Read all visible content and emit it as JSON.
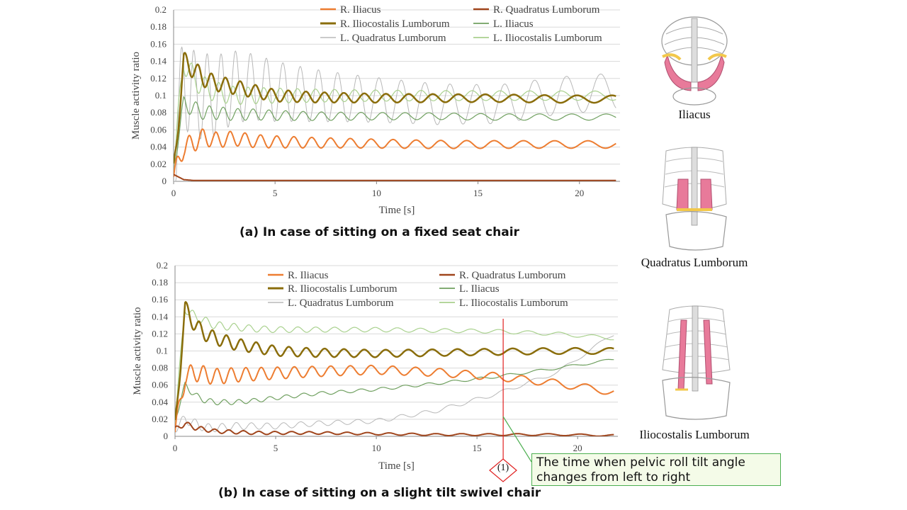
{
  "charts": {
    "top": {
      "caption": "(a) In case of sitting on a fixed seat chair",
      "xlabel": "Time  [s]",
      "ylabel": "Muscle activity ratio"
    },
    "bottom": {
      "caption": "(b) In case of sitting on a slight tilt swivel chair",
      "xlabel": "Time  [s]",
      "ylabel": "Muscle activity ratio"
    }
  },
  "annotation": {
    "marker": "(1)",
    "text_line1": "The time when pelvic roll tilt angle",
    "text_line2": "changes from left to right",
    "color_marker": "#e02020",
    "color_box": "#4caf50"
  },
  "anatomy": {
    "iliacus": "Iliacus",
    "quadratus": "Quadratus Lumborum",
    "iliocostalis": "Iliocostalis Lumborum",
    "muscle_color": "#e87a9a",
    "tendon_color": "#f2c84b"
  },
  "chart_data": [
    {
      "type": "line",
      "x": [
        0,
        0.5,
        1,
        1.5,
        2,
        3,
        4,
        5,
        7,
        10,
        13,
        16,
        19,
        21.8
      ],
      "xlim": [
        0,
        22
      ],
      "ylim": [
        0,
        0.2
      ],
      "xticks": [
        0,
        5,
        10,
        15,
        20
      ],
      "yticks": [
        0,
        0.02,
        0.04,
        0.06,
        0.08,
        0.1,
        0.12,
        0.14,
        0.16,
        0.18,
        0.2
      ],
      "ylabel": "Muscle activity ratio",
      "xlabel": "Time  [s]",
      "legend_placement": "top-right",
      "grid": "horizontal",
      "series": [
        {
          "name": "R. Iliacus",
          "color": "#ed7d31",
          "width": 2,
          "values": [
            0.005,
            0.04,
            0.045,
            0.052,
            0.048,
            0.05,
            0.047,
            0.046,
            0.045,
            0.044,
            0.043,
            0.043,
            0.043,
            0.043
          ],
          "osc": 0.012
        },
        {
          "name": "R. Quadratus Lumborum",
          "color": "#a0451c",
          "width": 2,
          "values": [
            0.008,
            0.002,
            0.001,
            0.001,
            0.001,
            0.001,
            0.001,
            0.001,
            0.001,
            0.001,
            0.001,
            0.001,
            0.001,
            0.001
          ],
          "osc": 0
        },
        {
          "name": "R. Iliocostalis Lumborum",
          "color": "#8a6d0b",
          "width": 2.5,
          "values": [
            0.01,
            0.14,
            0.13,
            0.12,
            0.115,
            0.11,
            0.105,
            0.1,
            0.098,
            0.097,
            0.097,
            0.097,
            0.096,
            0.096
          ],
          "osc": 0.012
        },
        {
          "name": "L. Iliacus",
          "color": "#70a060",
          "width": 1.2,
          "values": [
            0.02,
            0.09,
            0.085,
            0.08,
            0.08,
            0.078,
            0.078,
            0.077,
            0.076,
            0.076,
            0.076,
            0.075,
            0.075,
            0.075
          ],
          "osc": 0.01
        },
        {
          "name": "L. Quadratus Lumborum",
          "color": "#b8b8b8",
          "width": 1,
          "values": [
            0.03,
            0.12,
            0.1,
            0.1,
            0.1,
            0.11,
            0.11,
            0.105,
            0.1,
            0.095,
            0.09,
            0.09,
            0.1,
            0.105
          ],
          "osc": 0.06
        },
        {
          "name": "L. Iliocostalis Lumborum",
          "color": "#a9d18e",
          "width": 1.2,
          "values": [
            0.02,
            0.14,
            0.12,
            0.11,
            0.105,
            0.1,
            0.1,
            0.1,
            0.1,
            0.1,
            0.1,
            0.1,
            0.1,
            0.1
          ],
          "osc": 0.015
        }
      ]
    },
    {
      "type": "line",
      "x": [
        0,
        0.5,
        1,
        1.5,
        2,
        3,
        4,
        5,
        7,
        10,
        13,
        16,
        19,
        21.8
      ],
      "xlim": [
        0,
        22
      ],
      "ylim": [
        0,
        0.2
      ],
      "xticks": [
        0,
        5,
        10,
        15,
        20
      ],
      "yticks": [
        0,
        0.02,
        0.04,
        0.06,
        0.08,
        0.1,
        0.12,
        0.14,
        0.16,
        0.18,
        0.2
      ],
      "ylabel": "Muscle activity ratio",
      "xlabel": "Time  [s]",
      "legend_placement": "top-right",
      "grid": "horizontal",
      "event_time": 16.3,
      "series": [
        {
          "name": "R. Iliacus",
          "color": "#ed7d31",
          "width": 2,
          "values": [
            0.005,
            0.07,
            0.075,
            0.072,
            0.07,
            0.072,
            0.073,
            0.074,
            0.076,
            0.078,
            0.075,
            0.07,
            0.062,
            0.052
          ],
          "osc": 0.012
        },
        {
          "name": "R. Quadratus Lumborum",
          "color": "#a0451c",
          "width": 2,
          "values": [
            0.008,
            0.015,
            0.01,
            0.008,
            0.006,
            0.005,
            0.004,
            0.004,
            0.004,
            0.003,
            0.002,
            0.002,
            0.002,
            0.001
          ],
          "osc": 0.003
        },
        {
          "name": "R. Iliocostalis Lumborum",
          "color": "#8a6d0b",
          "width": 2.5,
          "values": [
            0.01,
            0.15,
            0.13,
            0.12,
            0.115,
            0.108,
            0.104,
            0.1,
            0.098,
            0.097,
            0.098,
            0.099,
            0.1,
            0.1
          ],
          "osc": 0.01
        },
        {
          "name": "L. Iliacus",
          "color": "#70a060",
          "width": 1.2,
          "values": [
            0.02,
            0.06,
            0.048,
            0.042,
            0.04,
            0.04,
            0.042,
            0.045,
            0.05,
            0.055,
            0.062,
            0.07,
            0.08,
            0.09
          ],
          "osc": 0.004
        },
        {
          "name": "L. Quadratus Lumborum",
          "color": "#b8b8b8",
          "width": 1,
          "values": [
            0.01,
            0.02,
            0.015,
            0.01,
            0.01,
            0.012,
            0.012,
            0.012,
            0.015,
            0.018,
            0.03,
            0.05,
            0.075,
            0.12
          ],
          "osc": 0.006
        },
        {
          "name": "L. Iliocostalis Lumborum",
          "color": "#a9d18e",
          "width": 1.2,
          "values": [
            0.02,
            0.15,
            0.14,
            0.135,
            0.13,
            0.128,
            0.126,
            0.125,
            0.125,
            0.125,
            0.124,
            0.123,
            0.12,
            0.115
          ],
          "osc": 0.006
        }
      ]
    }
  ]
}
